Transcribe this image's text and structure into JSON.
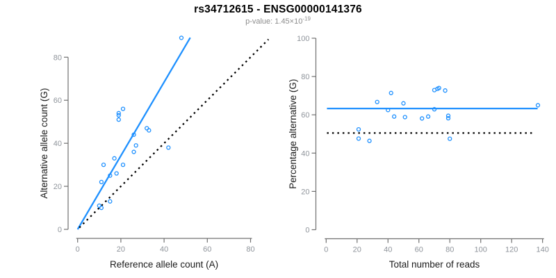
{
  "header": {
    "title": "rs34712615 - ENSG00000141376",
    "p_value_prefix": "p-value: 1.45×10",
    "p_value_exponent": "-19"
  },
  "colors": {
    "accent_blue": "#1E90FF",
    "reference_black": "#000000",
    "axis_line": "#707070",
    "tick_label": "#8f949b",
    "axis_title": "#1a1a1a",
    "title": "#000000",
    "subtitle": "#8c8c8c",
    "background": "#ffffff"
  },
  "chart_data": [
    {
      "type": "scatter",
      "name": "allele-counts-panel",
      "xlabel": "Reference allele count (A)",
      "ylabel": "Alternative allele count (G)",
      "xlim": [
        0,
        88
      ],
      "ylim": [
        0,
        89
      ],
      "xticks": [
        0,
        20,
        40,
        60,
        80
      ],
      "yticks": [
        0,
        20,
        40,
        60,
        80
      ],
      "grid": false,
      "legend": "none",
      "points": [
        [
          10,
          11
        ],
        [
          11,
          10
        ],
        [
          15,
          13
        ],
        [
          11,
          22
        ],
        [
          15,
          25
        ],
        [
          12,
          30
        ],
        [
          18,
          26
        ],
        [
          17,
          33
        ],
        [
          21,
          30
        ],
        [
          26,
          36
        ],
        [
          27,
          39
        ],
        [
          26,
          44
        ],
        [
          19,
          51
        ],
        [
          19,
          53
        ],
        [
          19,
          54
        ],
        [
          21,
          56
        ],
        [
          32,
          47
        ],
        [
          33,
          46
        ],
        [
          42,
          38
        ],
        [
          48,
          89
        ]
      ],
      "lines": [
        {
          "role": "fit",
          "style": "solid",
          "color": "#1E90FF",
          "slope": 1.7,
          "x1": 0,
          "y1": 0,
          "x2": 52.1,
          "y2": 89.1
        },
        {
          "role": "identity",
          "style": "dotted",
          "color": "#000000",
          "x1": 0.8,
          "y1": 0.8,
          "x2": 88.3,
          "y2": 88.3
        }
      ]
    },
    {
      "type": "scatter",
      "name": "percentage-panel",
      "xlabel": "Total number of reads",
      "ylabel": "Percentage alternative (G)",
      "xlim": [
        0,
        140
      ],
      "ylim": [
        0,
        100
      ],
      "xticks": [
        0,
        20,
        40,
        60,
        80,
        100,
        120,
        140
      ],
      "yticks": [
        0,
        20,
        40,
        60,
        80,
        100
      ],
      "grid": false,
      "legend": "none",
      "points": [
        [
          21,
          52.4
        ],
        [
          21,
          47.6
        ],
        [
          28,
          46.4
        ],
        [
          33,
          66.7
        ],
        [
          40,
          62.5
        ],
        [
          42,
          71.4
        ],
        [
          44,
          59.1
        ],
        [
          50,
          66.0
        ],
        [
          51,
          58.8
        ],
        [
          62,
          58.1
        ],
        [
          66,
          59.1
        ],
        [
          70,
          62.9
        ],
        [
          70,
          72.9
        ],
        [
          72,
          73.6
        ],
        [
          73,
          74.0
        ],
        [
          77,
          72.7
        ],
        [
          79,
          59.5
        ],
        [
          79,
          58.2
        ],
        [
          80,
          47.5
        ],
        [
          137,
          65.0
        ]
      ],
      "lines": [
        {
          "role": "fit",
          "style": "solid",
          "color": "#1E90FF",
          "x1": 0.5,
          "y1": 63.3,
          "x2": 136.8,
          "y2": 63.3
        },
        {
          "role": "reference",
          "style": "dotted",
          "color": "#000000",
          "x1": 0.5,
          "y1": 50.5,
          "x2": 134.5,
          "y2": 50.5
        }
      ]
    }
  ]
}
